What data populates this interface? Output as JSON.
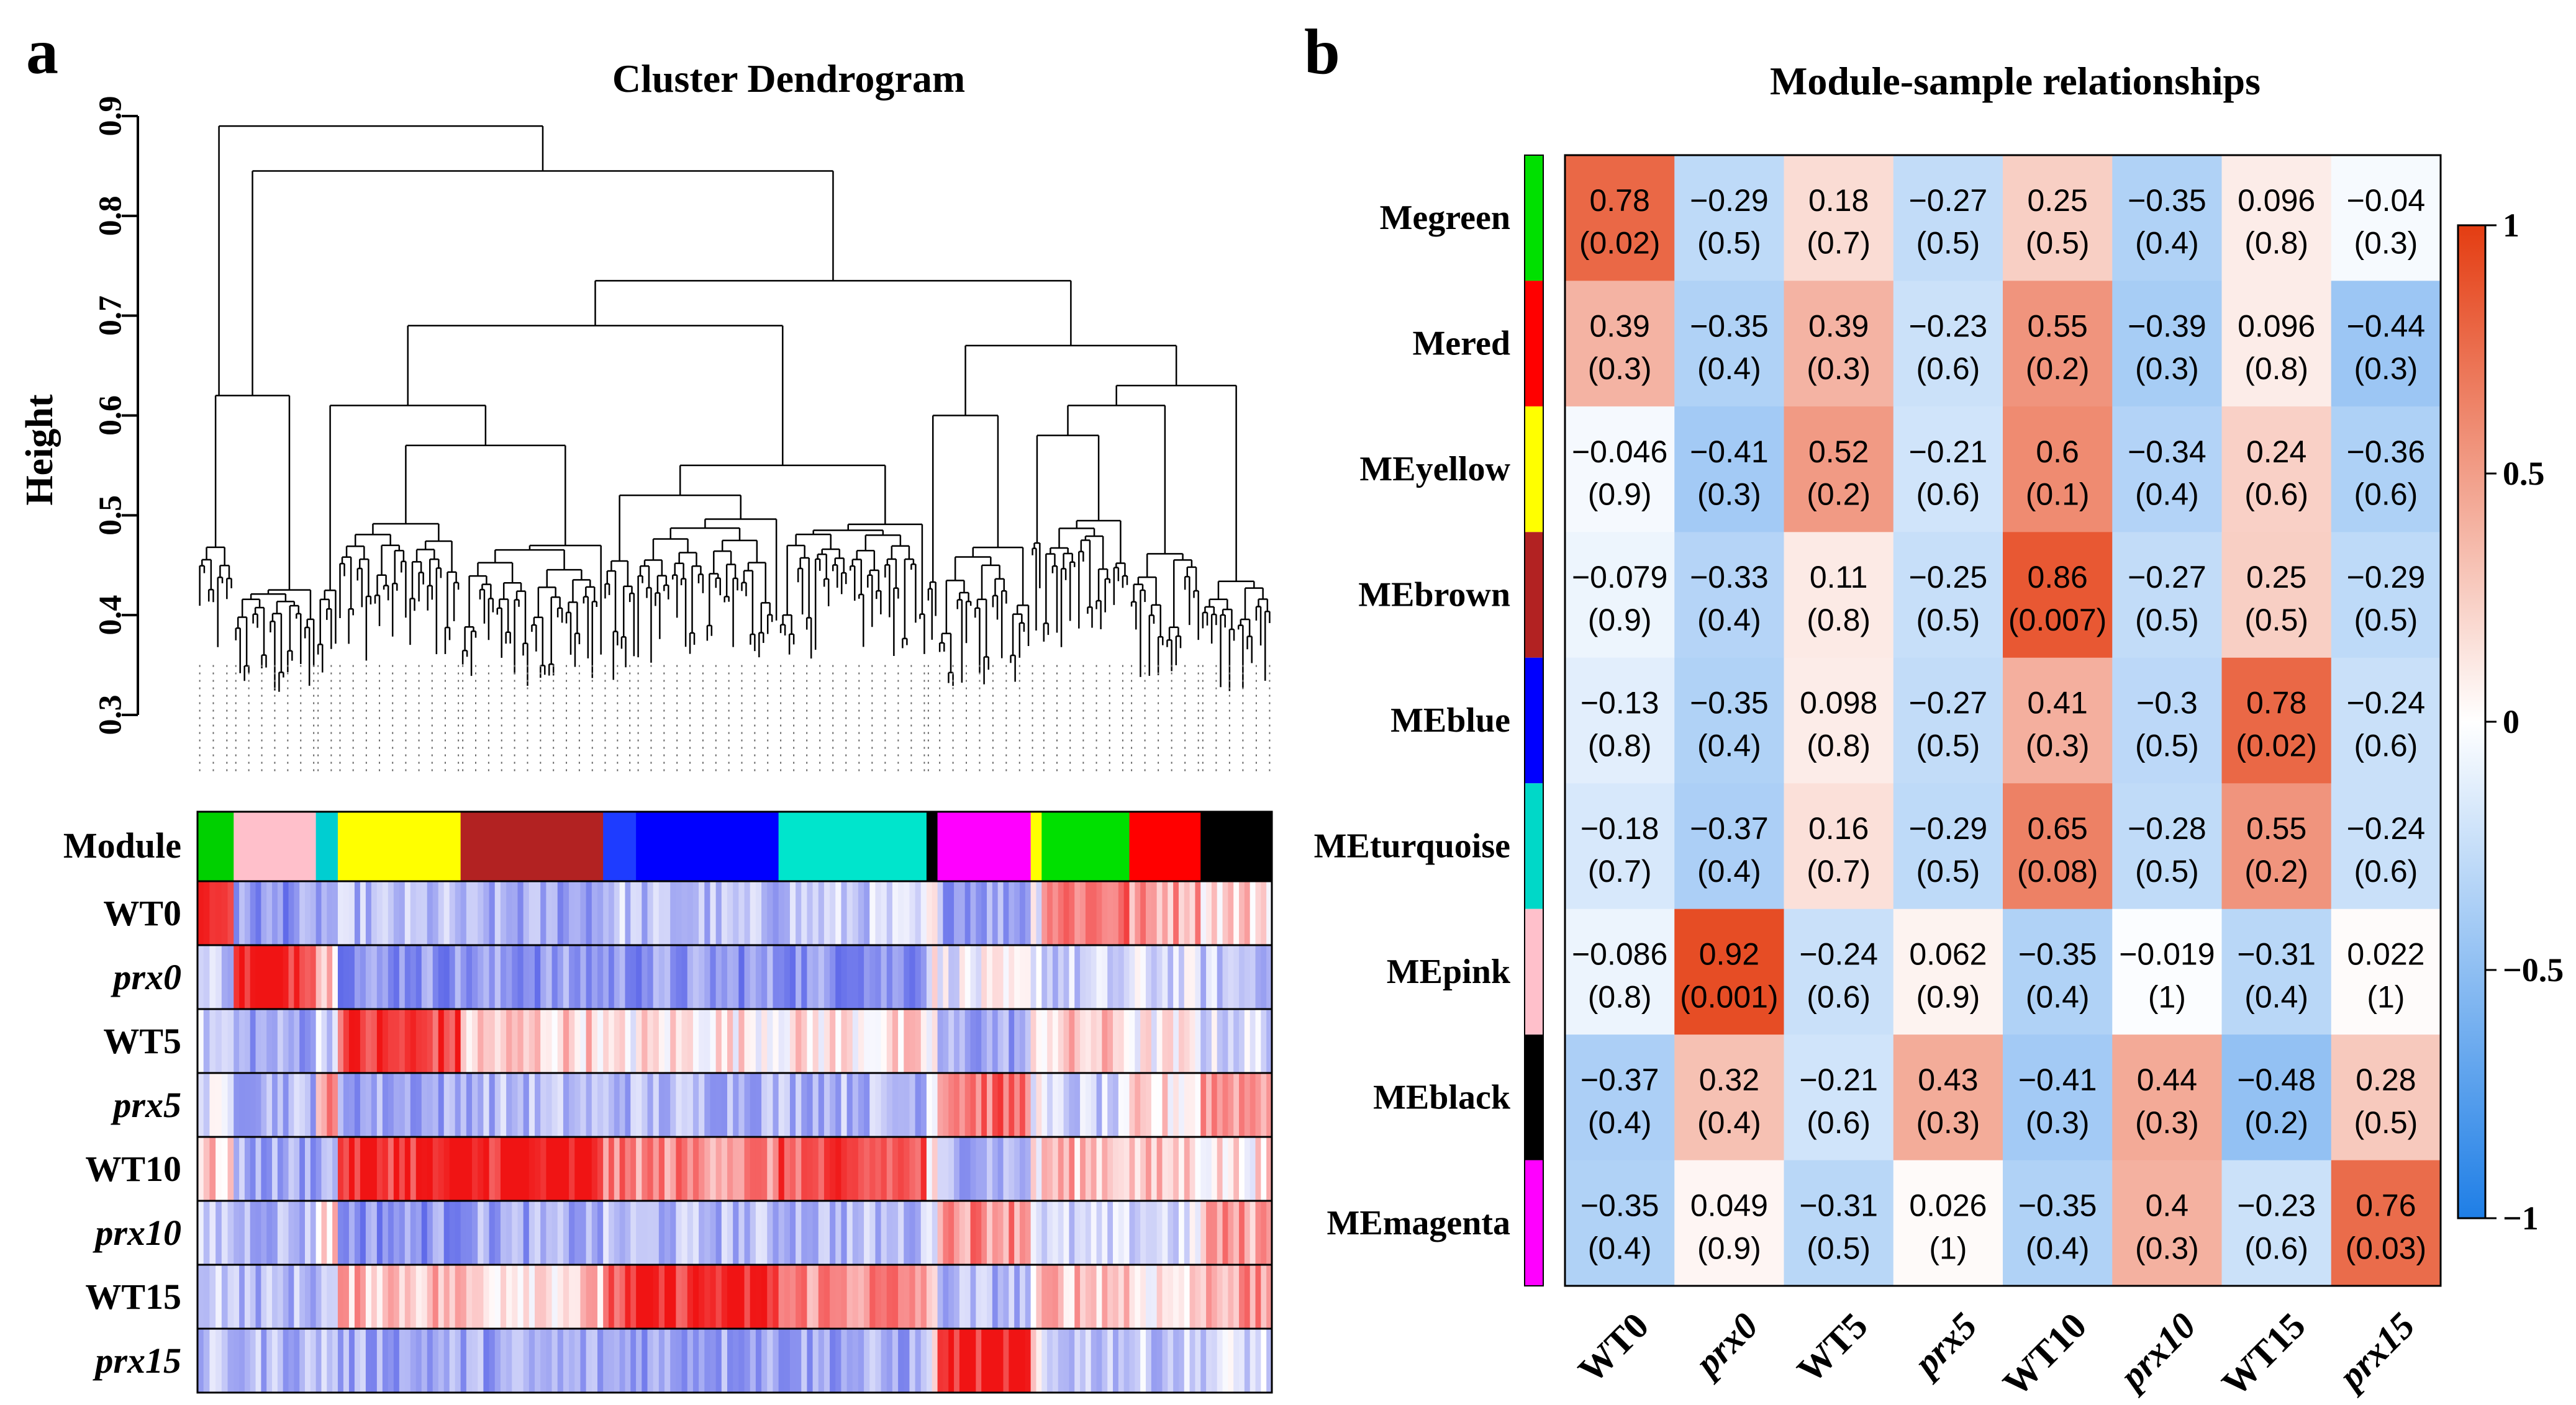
{
  "panel_a": {
    "letter": "a",
    "title": "Cluster Dendrogram",
    "ylabel": "Height",
    "yticks": [
      "0.3",
      "0.4",
      "0.5",
      "0.6",
      "0.7",
      "0.8",
      "0.9"
    ],
    "module_row_label": "Module",
    "module_bar": [
      {
        "color": "#00d000",
        "share": 0.033
      },
      {
        "color": "#ffc0cb",
        "share": 0.075
      },
      {
        "color": "#00ced1",
        "share": 0.02
      },
      {
        "color": "#ffff00",
        "share": 0.112
      },
      {
        "color": "#b22222",
        "share": 0.13
      },
      {
        "color": "#1e3cff",
        "share": 0.03
      },
      {
        "color": "#0000ff",
        "share": 0.13
      },
      {
        "color": "#00e5cc",
        "share": 0.135
      },
      {
        "color": "#000000",
        "share": 0.01
      },
      {
        "color": "#ff00ff",
        "share": 0.085
      },
      {
        "color": "#ffff00",
        "share": 0.01
      },
      {
        "color": "#00e000",
        "share": 0.08
      },
      {
        "color": "#ff0000",
        "share": 0.065
      },
      {
        "color": "#000000",
        "share": 0.065
      }
    ],
    "sample_rows": [
      {
        "label": "WT0",
        "italic": false,
        "profile": [
          0.9,
          -0.6,
          -0.5,
          -0.4,
          -0.5,
          -0.3,
          -0.4,
          -0.3,
          0.0,
          -0.5,
          0.0,
          0.6,
          0.4,
          0.2
        ]
      },
      {
        "label": "prx0",
        "italic": true,
        "profile": [
          -0.3,
          0.95,
          0.3,
          -0.6,
          -0.6,
          -0.6,
          -0.6,
          -0.6,
          0.0,
          -0.1,
          0.0,
          -0.3,
          -0.2,
          -0.3
        ]
      },
      {
        "label": "WT5",
        "italic": false,
        "profile": [
          -0.3,
          -0.5,
          -0.2,
          0.8,
          0.2,
          0.0,
          0.1,
          0.1,
          0.0,
          -0.5,
          0.0,
          0.2,
          0.0,
          -0.2
        ]
      },
      {
        "label": "prx5",
        "italic": true,
        "profile": [
          -0.2,
          -0.4,
          0.4,
          -0.5,
          -0.4,
          -0.4,
          -0.4,
          -0.4,
          0.0,
          0.6,
          0.0,
          -0.3,
          0.1,
          0.5
        ]
      },
      {
        "label": "WT10",
        "italic": false,
        "profile": [
          0.2,
          -0.5,
          -0.4,
          0.9,
          0.95,
          0.5,
          0.5,
          0.7,
          0.0,
          -0.4,
          0.0,
          0.3,
          0.2,
          0.1
        ]
      },
      {
        "label": "prx10",
        "italic": true,
        "profile": [
          -0.3,
          -0.4,
          0.2,
          -0.6,
          -0.5,
          -0.4,
          -0.4,
          -0.4,
          0.0,
          0.5,
          0.0,
          -0.3,
          -0.2,
          0.4
        ]
      },
      {
        "label": "WT15",
        "italic": false,
        "profile": [
          -0.2,
          -0.4,
          -0.3,
          0.3,
          0.2,
          0.7,
          0.9,
          0.5,
          0.0,
          -0.4,
          0.0,
          0.3,
          0.1,
          0.4
        ]
      },
      {
        "label": "prx15",
        "italic": true,
        "profile": [
          -0.4,
          -0.4,
          -0.3,
          -0.5,
          -0.5,
          -0.5,
          -0.5,
          -0.5,
          0.0,
          0.95,
          0.0,
          -0.3,
          -0.3,
          -0.2
        ]
      }
    ]
  },
  "chart_data": {
    "type": "heatmap",
    "letter": "b",
    "title": "Module-sample relationships",
    "rows": [
      {
        "label": "Megreen",
        "color": "#00e000"
      },
      {
        "label": "Mered",
        "color": "#ff0000"
      },
      {
        "label": "MEyellow",
        "color": "#ffff00"
      },
      {
        "label": "MEbrown",
        "color": "#b22222"
      },
      {
        "label": "MEblue",
        "color": "#0000ff"
      },
      {
        "label": "MEturquoise",
        "color": "#00d8c8"
      },
      {
        "label": "MEpink",
        "color": "#ffc0cb"
      },
      {
        "label": "MEblack",
        "color": "#000000"
      },
      {
        "label": "MEmagenta",
        "color": "#ff00ff"
      }
    ],
    "columns": [
      {
        "label": "WT0",
        "italic": false
      },
      {
        "label": "prx0",
        "italic": true
      },
      {
        "label": "WT5",
        "italic": false
      },
      {
        "label": "prx5",
        "italic": true
      },
      {
        "label": "WT10",
        "italic": false
      },
      {
        "label": "prx10",
        "italic": true
      },
      {
        "label": "WT15",
        "italic": false
      },
      {
        "label": "prx15",
        "italic": true
      }
    ],
    "values": [
      [
        0.78,
        -0.29,
        0.18,
        -0.27,
        0.25,
        -0.35,
        0.096,
        -0.04
      ],
      [
        0.39,
        -0.35,
        0.39,
        -0.23,
        0.55,
        -0.39,
        0.096,
        -0.44
      ],
      [
        -0.046,
        -0.41,
        0.52,
        -0.21,
        0.6,
        -0.34,
        0.24,
        -0.36
      ],
      [
        -0.079,
        -0.33,
        0.11,
        -0.25,
        0.86,
        -0.27,
        0.25,
        -0.29
      ],
      [
        -0.13,
        -0.35,
        0.098,
        -0.27,
        0.41,
        -0.3,
        0.78,
        -0.24
      ],
      [
        -0.18,
        -0.37,
        0.16,
        -0.29,
        0.65,
        -0.28,
        0.55,
        -0.24
      ],
      [
        -0.086,
        0.92,
        -0.24,
        0.062,
        -0.35,
        -0.019,
        -0.31,
        0.022
      ],
      [
        -0.37,
        0.32,
        -0.21,
        0.43,
        -0.41,
        0.44,
        -0.48,
        0.28
      ],
      [
        -0.35,
        0.049,
        -0.31,
        0.026,
        -0.35,
        0.4,
        -0.23,
        0.76
      ]
    ],
    "value_labels": [
      [
        "0.78",
        "−0.29",
        "0.18",
        "−0.27",
        "0.25",
        "−0.35",
        "0.096",
        "−0.04"
      ],
      [
        "0.39",
        "−0.35",
        "0.39",
        "−0.23",
        "0.55",
        "−0.39",
        "0.096",
        "−0.44"
      ],
      [
        "−0.046",
        "−0.41",
        "0.52",
        "−0.21",
        "0.6",
        "−0.34",
        "0.24",
        "−0.36"
      ],
      [
        "−0.079",
        "−0.33",
        "0.11",
        "−0.25",
        "0.86",
        "−0.27",
        "0.25",
        "−0.29"
      ],
      [
        "−0.13",
        "−0.35",
        "0.098",
        "−0.27",
        "0.41",
        "−0.3",
        "0.78",
        "−0.24"
      ],
      [
        "−0.18",
        "−0.37",
        "0.16",
        "−0.29",
        "0.65",
        "−0.28",
        "0.55",
        "−0.24"
      ],
      [
        "−0.086",
        "0.92",
        "−0.24",
        "0.062",
        "−0.35",
        "−0.019",
        "−0.31",
        "0.022"
      ],
      [
        "−0.37",
        "0.32",
        "−0.21",
        "0.43",
        "−0.41",
        "0.44",
        "−0.48",
        "0.28"
      ],
      [
        "−0.35",
        "0.049",
        "−0.31",
        "0.026",
        "−0.35",
        "0.4",
        "−0.23",
        "0.76"
      ]
    ],
    "pvalue_labels": [
      [
        "(0.02)",
        "(0.5)",
        "(0.7)",
        "(0.5)",
        "(0.5)",
        "(0.4)",
        "(0.8)",
        "(0.3)"
      ],
      [
        "(0.3)",
        "(0.4)",
        "(0.3)",
        "(0.6)",
        "(0.2)",
        "(0.3)",
        "(0.8)",
        "(0.3)"
      ],
      [
        "(0.9)",
        "(0.3)",
        "(0.2)",
        "(0.6)",
        "(0.1)",
        "(0.4)",
        "(0.6)",
        "(0.6)"
      ],
      [
        "(0.9)",
        "(0.4)",
        "(0.8)",
        "(0.5)",
        "(0.007)",
        "(0.5)",
        "(0.5)",
        "(0.5)"
      ],
      [
        "(0.8)",
        "(0.4)",
        "(0.8)",
        "(0.5)",
        "(0.3)",
        "(0.5)",
        "(0.02)",
        "(0.6)"
      ],
      [
        "(0.7)",
        "(0.4)",
        "(0.7)",
        "(0.5)",
        "(0.08)",
        "(0.5)",
        "(0.2)",
        "(0.6)"
      ],
      [
        "(0.8)",
        "(0.001)",
        "(0.6)",
        "(0.9)",
        "(0.4)",
        "(1)",
        "(0.4)",
        "(1)"
      ],
      [
        "(0.4)",
        "(0.4)",
        "(0.6)",
        "(0.3)",
        "(0.3)",
        "(0.3)",
        "(0.2)",
        "(0.5)"
      ],
      [
        "(0.4)",
        "(0.9)",
        "(0.5)",
        "(1)",
        "(0.4)",
        "(0.3)",
        "(0.6)",
        "(0.03)"
      ]
    ],
    "color_scale": {
      "min": -1,
      "max": 1,
      "low_color": "#1e7ee6",
      "mid_color": "#ffffff",
      "high_color": "#e43d12",
      "ticks": [
        {
          "value": 1,
          "label": "1"
        },
        {
          "value": 0.5,
          "label": "0.5"
        },
        {
          "value": 0,
          "label": "0"
        },
        {
          "value": -0.5,
          "label": "−0.5"
        },
        {
          "value": -1,
          "label": "−1"
        }
      ]
    }
  }
}
